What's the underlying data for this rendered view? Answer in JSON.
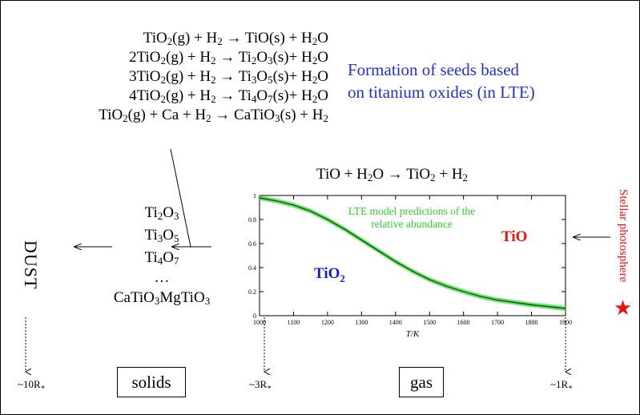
{
  "reactions": [
    {
      "parts": [
        "TiO",
        "2",
        "(g) + H",
        "2",
        " → TiO(s)   + H",
        "2",
        "O"
      ]
    },
    {
      "parts": [
        "2TiO",
        "2",
        "(g) + H",
        "2",
        " → Ti",
        "2",
        "O",
        "3",
        "(s)+ H",
        "2",
        "O"
      ]
    },
    {
      "parts": [
        "3TiO",
        "2",
        "(g) + H",
        "2",
        " → Ti",
        "3",
        "O",
        "5",
        "(s)+ H",
        "2",
        "O"
      ]
    },
    {
      "parts": [
        "4TiO",
        "2",
        "(g) + H",
        "2",
        " → Ti",
        "4",
        "O",
        "7",
        "(s)+ H",
        "2",
        "O"
      ]
    },
    {
      "parts": [
        "TiO",
        "2",
        "(g) + Ca + H",
        "2",
        " → CaTiO",
        "3",
        "(s) + H",
        "2"
      ]
    }
  ],
  "title_lines": [
    "Formation of seeds based",
    "on titanium oxides (in LTE)"
  ],
  "gas_reaction": {
    "parts": [
      "TiO + H",
      "2",
      "O → TiO",
      "2",
      " + H",
      "2"
    ]
  },
  "solids_list": [
    {
      "parts": [
        "Ti",
        "2",
        "O",
        "3"
      ]
    },
    {
      "parts": [
        "Ti",
        "3",
        "O",
        "5"
      ]
    },
    {
      "parts": [
        "Ti",
        "4",
        "O",
        "7"
      ]
    },
    {
      "parts": [
        "…"
      ]
    },
    {
      "parts": [
        "CaTiO",
        "3",
        "MgTiO",
        "3"
      ]
    }
  ],
  "dust_label": "DUST",
  "stellar_label": "Stellar photosphere",
  "star_glyph": "★",
  "star_color": "#ee1111",
  "radius_labels": {
    "r10": "~10R",
    "r3": "~3R",
    "r1": "~1R",
    "star_sub": "∗"
  },
  "box_labels": {
    "solids": "solids",
    "gas": "gas"
  },
  "chart_data": {
    "type": "line",
    "x": [
      1000,
      1050,
      1100,
      1150,
      1200,
      1250,
      1300,
      1350,
      1400,
      1450,
      1500,
      1550,
      1600,
      1650,
      1700,
      1750,
      1800,
      1850,
      1900
    ],
    "series": [
      {
        "values": [
          0.98,
          0.955,
          0.92,
          0.87,
          0.8,
          0.72,
          0.63,
          0.54,
          0.45,
          0.37,
          0.3,
          0.245,
          0.2,
          0.16,
          0.13,
          0.11,
          0.09,
          0.075,
          0.06
        ]
      }
    ],
    "band_halfwidth": 0.02,
    "xlim": [
      1000,
      1900
    ],
    "ylim": [
      0,
      1
    ],
    "xticks": [
      1000,
      1100,
      1200,
      1300,
      1400,
      1500,
      1600,
      1700,
      1800,
      1900
    ],
    "yticks": [
      0,
      0.2,
      0.4,
      0.6,
      0.8,
      1
    ],
    "xlabel": "T/K",
    "annotation_lines": [
      "LTE model predictions of the",
      "relative abundance"
    ],
    "region_labels": {
      "tio2": "TiO",
      "tio2_sub": "2",
      "tio": "TiO"
    },
    "colors": {
      "line": "#0a5a0a",
      "band": "#55dd55",
      "annotation": "#33cc33",
      "tio2": "#1122cc",
      "tio": "#ee1111"
    },
    "grid": false
  }
}
